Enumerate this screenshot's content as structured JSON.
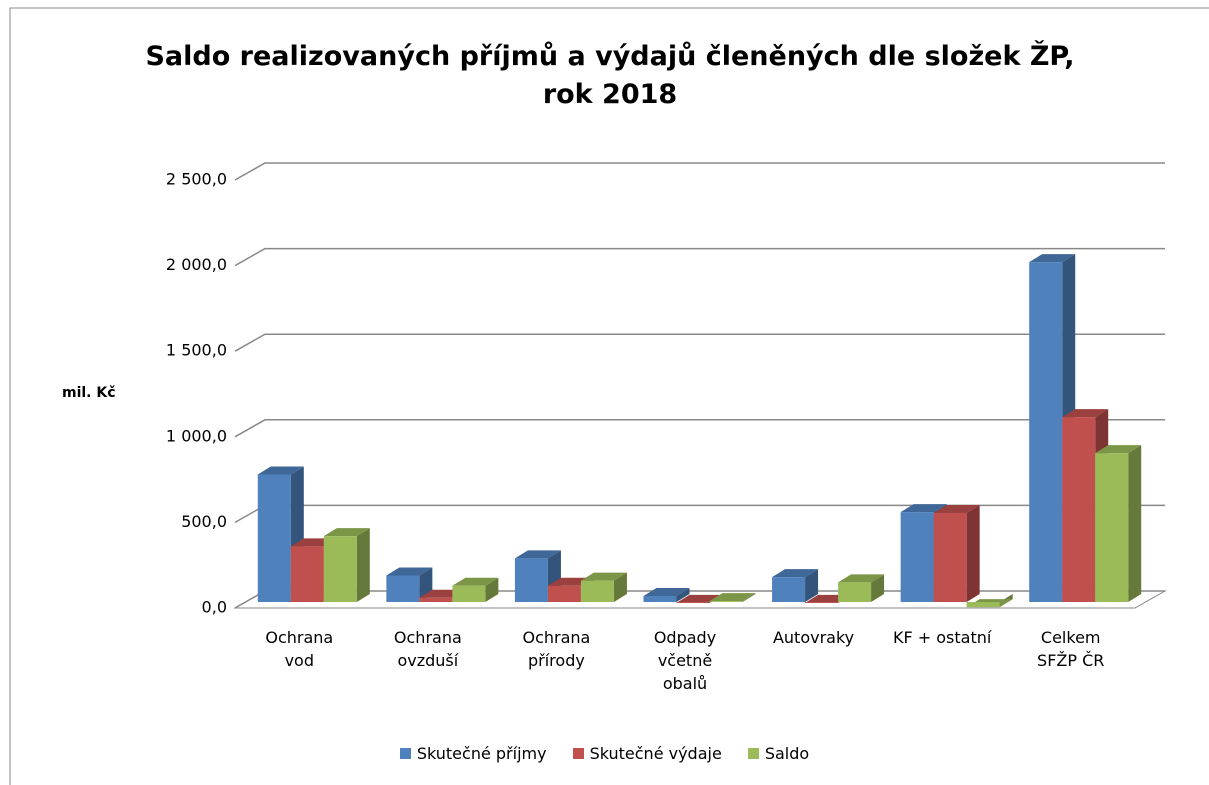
{
  "chart_data": {
    "type": "bar3d",
    "title": "Saldo realizovaných příjmů a výdajů členěných dle složek ŽP,\nrok 2018",
    "y_label": "mil. Kč",
    "categories": [
      "Ochrana\nvod",
      "Ochrana\novzduší",
      "Ochrana\npřírody",
      "Odpady\nvčetně\nobalů",
      "Autovraky",
      "KF + ostatní",
      "Celkem\nSFŽP ČR"
    ],
    "series": [
      {
        "name": "Skutečné příjmy",
        "color": "#4f81bd",
        "values": [
          780,
          190,
          290,
          70,
          180,
          560,
          2020
        ]
      },
      {
        "name": "Skutečné výdaje",
        "color": "#c0504d",
        "values": [
          360,
          60,
          130,
          30,
          30,
          555,
          1115
        ]
      },
      {
        "name": "Saldo",
        "color": "#9bbb59",
        "values": [
          420,
          130,
          160,
          40,
          150,
          5,
          905
        ]
      }
    ],
    "ylim": [
      0,
      2500
    ],
    "yticks": [
      {
        "value": 0,
        "label": "0,0"
      },
      {
        "value": 500,
        "label": "500,0"
      },
      {
        "value": 1000,
        "label": "1 000,0"
      },
      {
        "value": 1500,
        "label": "1 500,0"
      },
      {
        "value": 2000,
        "label": "2 000,0"
      },
      {
        "value": 2500,
        "label": "2 500,0"
      }
    ],
    "grid": true,
    "legend": "bottom"
  }
}
